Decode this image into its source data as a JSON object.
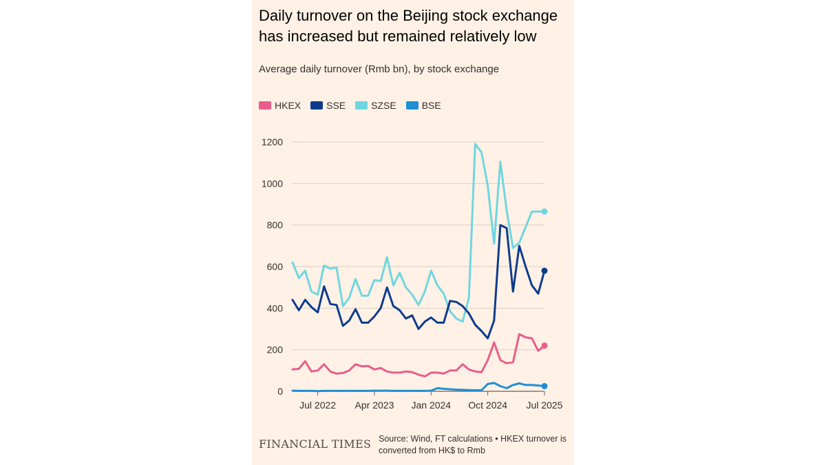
{
  "colors": {
    "HKEX": "#e95d8c",
    "SSE": "#0d3b8c",
    "SZSE": "#6fd6e0",
    "BSE": "#1e8fd5",
    "background": "#fff1e5"
  },
  "header": {
    "title": "Daily turnover on the Beijing stock exchange has increased but remained relatively low",
    "subtitle": "Average daily turnover (Rmb bn), by stock exchange"
  },
  "legend": [
    "HKEX",
    "SSE",
    "SZSE",
    "BSE"
  ],
  "footer": {
    "logo": "FINANCIAL TIMES",
    "source": "Source: Wind, FT calculations • HKEX turnover is converted from HK$ to Rmb"
  },
  "chart_data": {
    "type": "line",
    "title": "Daily turnover on the Beijing stock exchange has increased but remained relatively low",
    "subtitle": "Average daily turnover (Rmb bn), by stock exchange",
    "ylim": [
      0,
      1200
    ],
    "yticks": [
      0,
      200,
      400,
      600,
      800,
      1000,
      1200
    ],
    "x": [
      "2022-03",
      "2022-04",
      "2022-05",
      "2022-06",
      "2022-07",
      "2022-08",
      "2022-09",
      "2022-10",
      "2022-11",
      "2022-12",
      "2023-01",
      "2023-02",
      "2023-03",
      "2023-04",
      "2023-05",
      "2023-06",
      "2023-07",
      "2023-08",
      "2023-09",
      "2023-10",
      "2023-11",
      "2023-12",
      "2024-01",
      "2024-02",
      "2024-03",
      "2024-04",
      "2024-05",
      "2024-06",
      "2024-07",
      "2024-08",
      "2024-09",
      "2024-10",
      "2024-11",
      "2024-12",
      "2025-01",
      "2025-02",
      "2025-03",
      "2025-04",
      "2025-05",
      "2025-06",
      "2025-07"
    ],
    "xtick_labels": [
      {
        "label": "Jul 2022",
        "x": "2022-07"
      },
      {
        "label": "Apr 2023",
        "x": "2023-04"
      },
      {
        "label": "Jan 2024",
        "x": "2024-01"
      },
      {
        "label": "Oct 2024",
        "x": "2024-10"
      },
      {
        "label": "Jul 2025",
        "x": "2025-07"
      }
    ],
    "series": [
      {
        "name": "HKEX",
        "values": [
          105,
          108,
          145,
          95,
          100,
          130,
          95,
          85,
          88,
          100,
          130,
          120,
          122,
          105,
          112,
          95,
          90,
          90,
          95,
          92,
          80,
          72,
          90,
          90,
          85,
          100,
          100,
          130,
          105,
          95,
          92,
          150,
          235,
          150,
          135,
          140,
          275,
          260,
          255,
          195,
          220
        ]
      },
      {
        "name": "SSE",
        "values": [
          440,
          390,
          440,
          405,
          380,
          505,
          420,
          415,
          315,
          340,
          395,
          330,
          330,
          360,
          400,
          500,
          410,
          390,
          350,
          365,
          300,
          335,
          355,
          330,
          330,
          435,
          430,
          410,
          375,
          320,
          290,
          255,
          340,
          800,
          785,
          480,
          700,
          600,
          510,
          470,
          580
        ]
      },
      {
        "name": "SZSE",
        "values": [
          620,
          545,
          580,
          480,
          465,
          605,
          590,
          595,
          410,
          450,
          540,
          460,
          460,
          535,
          530,
          645,
          510,
          570,
          500,
          465,
          415,
          480,
          580,
          510,
          470,
          385,
          350,
          335,
          450,
          1190,
          1150,
          990,
          710,
          1105,
          870,
          690,
          715,
          790,
          865,
          865,
          865
        ]
      },
      {
        "name": "BSE",
        "values": [
          3,
          2,
          2,
          2,
          1,
          2,
          2,
          2,
          2,
          2,
          2,
          2,
          2,
          3,
          3,
          3,
          2,
          2,
          2,
          2,
          2,
          2,
          3,
          15,
          12,
          10,
          8,
          7,
          6,
          5,
          5,
          35,
          40,
          25,
          15,
          30,
          38,
          30,
          30,
          28,
          25
        ]
      }
    ]
  }
}
